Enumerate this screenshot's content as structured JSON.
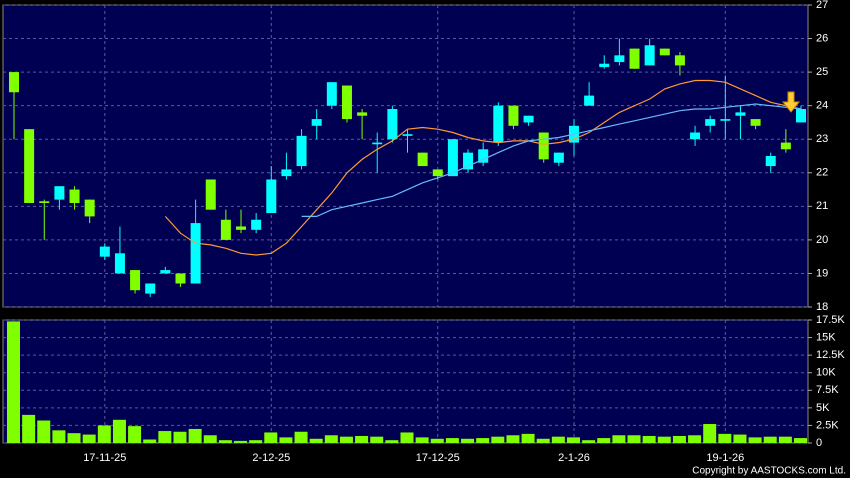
{
  "chart_data": [
    {
      "type": "candlestick",
      "up_color": "#00ffff",
      "down_color": "#80ff00",
      "background": "#000052",
      "ylim": [
        18,
        27
      ],
      "yticks": [
        18,
        19,
        20,
        21,
        22,
        23,
        24,
        25,
        26,
        27
      ],
      "grid": true,
      "open": [
        25.0,
        23.3,
        21.15,
        21.2,
        21.5,
        21.2,
        19.5,
        19.0,
        19.1,
        18.4,
        19.0,
        19.0,
        18.7,
        21.8,
        20.6,
        20.4,
        20.3,
        20.8,
        21.9,
        22.2,
        23.4,
        24.0,
        24.6,
        23.8,
        22.85,
        23.0,
        23.1,
        22.6,
        22.1,
        21.9,
        22.1,
        22.3,
        22.9,
        24.0,
        23.5,
        23.2,
        22.3,
        22.9,
        24.0,
        25.15,
        25.3,
        25.7,
        25.2,
        25.7,
        25.5,
        23.0,
        23.4,
        23.55,
        23.7,
        23.6,
        22.2,
        22.9,
        23.5
      ],
      "close": [
        24.4,
        21.1,
        21.1,
        21.6,
        21.1,
        20.7,
        19.8,
        19.6,
        18.5,
        18.7,
        19.1,
        18.7,
        20.5,
        20.9,
        20.0,
        20.3,
        20.6,
        21.8,
        22.1,
        23.1,
        23.6,
        24.7,
        23.6,
        23.7,
        22.9,
        23.9,
        23.15,
        22.2,
        21.9,
        23.0,
        22.6,
        22.7,
        24.0,
        23.4,
        23.7,
        22.4,
        22.6,
        23.4,
        24.3,
        25.25,
        25.5,
        25.1,
        25.8,
        25.5,
        25.2,
        23.2,
        23.6,
        23.6,
        23.8,
        23.4,
        22.5,
        22.7,
        23.9
      ],
      "high": [
        25.0,
        23.3,
        21.2,
        21.6,
        21.6,
        21.2,
        19.9,
        20.4,
        19.1,
        18.7,
        19.2,
        19.0,
        21.2,
        21.8,
        20.9,
        20.9,
        20.8,
        22.2,
        22.6,
        23.3,
        23.9,
        24.7,
        24.6,
        23.9,
        23.2,
        24.0,
        23.3,
        22.6,
        22.1,
        23.0,
        22.7,
        22.9,
        24.1,
        24.0,
        23.7,
        23.2,
        22.6,
        23.6,
        24.7,
        25.5,
        26.0,
        25.7,
        26.0,
        25.7,
        25.6,
        23.4,
        23.7,
        24.9,
        24.0,
        23.6,
        22.6,
        23.3,
        24.0
      ],
      "low": [
        23.0,
        21.1,
        20.0,
        20.9,
        20.9,
        20.5,
        19.4,
        19.0,
        18.4,
        18.3,
        19.0,
        18.6,
        18.7,
        20.9,
        20.0,
        20.2,
        20.2,
        20.8,
        21.8,
        22.1,
        23.0,
        23.9,
        23.5,
        23.0,
        22.0,
        22.9,
        22.6,
        22.2,
        21.8,
        21.9,
        22.0,
        22.2,
        22.8,
        23.3,
        23.4,
        22.3,
        22.2,
        22.5,
        24.0,
        25.1,
        25.2,
        25.1,
        25.2,
        25.5,
        24.9,
        22.8,
        23.2,
        23.0,
        23.0,
        23.3,
        22.0,
        22.6,
        23.5
      ],
      "series": [
        {
          "color": "#ff9933",
          "values": [
            null,
            null,
            null,
            null,
            null,
            null,
            null,
            null,
            null,
            null,
            20.7,
            20.2,
            19.9,
            19.85,
            19.75,
            19.6,
            19.55,
            19.6,
            19.9,
            20.4,
            20.9,
            21.4,
            22.0,
            22.4,
            22.7,
            22.95,
            23.3,
            23.35,
            23.3,
            23.2,
            23.05,
            22.95,
            22.9,
            22.95,
            22.95,
            22.85,
            22.9,
            23.0,
            23.2,
            23.5,
            23.8,
            24.0,
            24.2,
            24.5,
            24.65,
            24.75,
            24.75,
            24.7,
            24.5,
            24.3,
            24.1,
            24.0,
            23.9
          ]
        },
        {
          "color": "#66bbff",
          "values": [
            null,
            null,
            null,
            null,
            null,
            null,
            null,
            null,
            null,
            null,
            null,
            null,
            null,
            null,
            null,
            null,
            null,
            null,
            null,
            20.7,
            20.7,
            20.9,
            21.0,
            21.1,
            21.2,
            21.3,
            21.5,
            21.7,
            21.85,
            22.0,
            22.2,
            22.4,
            22.6,
            22.8,
            22.95,
            23.0,
            23.05,
            23.15,
            23.25,
            23.35,
            23.45,
            23.55,
            23.65,
            23.75,
            23.85,
            23.9,
            23.9,
            23.95,
            24.0,
            24.05,
            24.0,
            23.95,
            23.9
          ]
        }
      ]
    },
    {
      "type": "bar",
      "color": "#80ff00",
      "categories": [
        null,
        null,
        null,
        null,
        null,
        null,
        "17-11-25",
        null,
        null,
        null,
        null,
        null,
        null,
        null,
        null,
        null,
        null,
        "2-12-25",
        null,
        null,
        null,
        null,
        null,
        null,
        null,
        null,
        null,
        null,
        "17-12-25",
        null,
        null,
        null,
        null,
        null,
        null,
        null,
        null,
        "2-1-26",
        null,
        null,
        null,
        null,
        null,
        null,
        null,
        null,
        null,
        "19-1-26",
        null,
        null,
        null,
        null,
        null
      ],
      "values": [
        17300,
        4000,
        3200,
        1800,
        1400,
        1200,
        2500,
        3300,
        2400,
        500,
        1700,
        1600,
        2000,
        1100,
        400,
        300,
        400,
        1500,
        800,
        1600,
        600,
        1100,
        900,
        1000,
        900,
        400,
        1500,
        800,
        600,
        700,
        600,
        700,
        900,
        1100,
        1300,
        600,
        900,
        800,
        400,
        700,
        1100,
        1100,
        1000,
        900,
        1000,
        1100,
        2700,
        1300,
        1200,
        800,
        900,
        900,
        700
      ],
      "ylim": [
        0,
        17500
      ],
      "yticks": [
        0,
        {
          "value": 2500,
          "label": "2.5K"
        },
        {
          "value": 5000,
          "label": "5K"
        },
        {
          "value": 7500,
          "label": "7.5K"
        },
        {
          "value": 10000,
          "label": "10K"
        },
        {
          "value": 12500,
          "label": "12.5K"
        },
        {
          "value": 15000,
          "label": "15K"
        },
        {
          "value": 17500,
          "label": "17.5K"
        }
      ],
      "grid": true
    }
  ],
  "copyright": "Copyright by AASTOCKS.com Ltd."
}
